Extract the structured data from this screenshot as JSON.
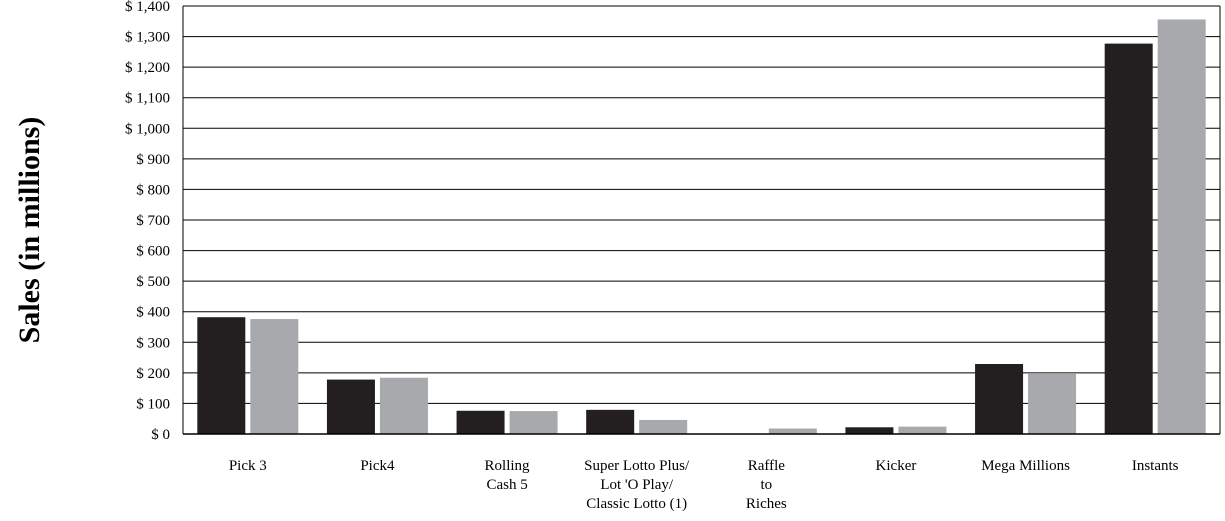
{
  "chart_data": {
    "type": "bar",
    "ylabel": "Sales (in millions)",
    "xlabel": "",
    "ylim": [
      0,
      1400
    ],
    "ytick_step": 100,
    "ytick_labels": [
      "$ 0",
      "$ 100",
      "$ 200",
      "$ 300",
      "$ 400",
      "$ 500",
      "$ 600",
      "$ 700",
      "$ 800",
      "$ 900",
      "$ 1,000",
      "$ 1,100",
      "$ 1,200",
      "$ 1,300",
      "$ 1,400"
    ],
    "grid": true,
    "legend": "none",
    "categories": [
      [
        "Pick 3"
      ],
      [
        "Pick4"
      ],
      [
        "Rolling",
        "Cash 5"
      ],
      [
        "Super Lotto Plus/",
        "Lot 'O Play/",
        "Classic Lotto (1)"
      ],
      [
        "Raffle",
        "to",
        "Riches"
      ],
      [
        "Kicker"
      ],
      [
        "Mega Millions"
      ],
      [
        "Instants"
      ]
    ],
    "series": [
      {
        "values": [
          382,
          178,
          76,
          79,
          0,
          22,
          229,
          1277
        ],
        "color": "#231f20"
      },
      {
        "values": [
          376,
          184,
          75,
          46,
          18,
          24,
          199,
          1356
        ],
        "color": "#a7a9ac"
      }
    ]
  }
}
